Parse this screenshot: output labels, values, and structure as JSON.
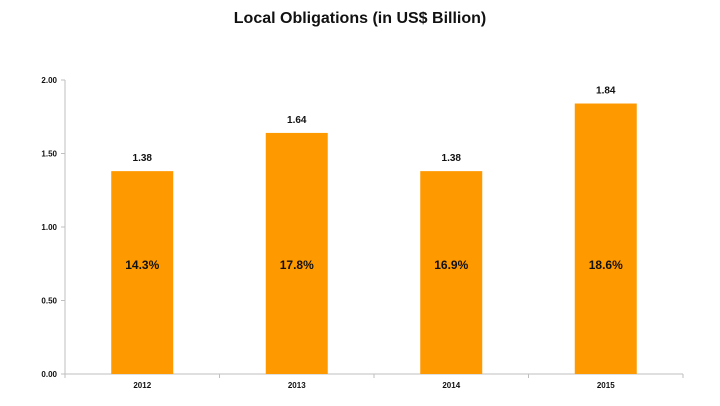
{
  "chart_data": {
    "type": "bar",
    "title": "Local Obligations (in US$ Billion)",
    "xlabel": "",
    "ylabel": "",
    "categories": [
      "2012",
      "2013",
      "2014",
      "2015"
    ],
    "values": [
      1.38,
      1.64,
      1.38,
      1.84
    ],
    "value_labels": [
      "1.38",
      "1.64",
      "1.38",
      "1.84"
    ],
    "bar_annotations": [
      "14.3%",
      "17.8%",
      "16.9%",
      "18.6%"
    ],
    "ylim": [
      0,
      2.0
    ],
    "y_ticks": [
      0,
      0.5,
      1.0,
      1.5,
      2.0
    ],
    "y_tick_labels": [
      "0.00",
      "0.50",
      "1.00",
      "1.50",
      "2.00"
    ],
    "grid": false,
    "legend": "none",
    "colors": {
      "bar": "#FF9900",
      "axis": "#BFBFBF",
      "text": "#111111"
    }
  }
}
